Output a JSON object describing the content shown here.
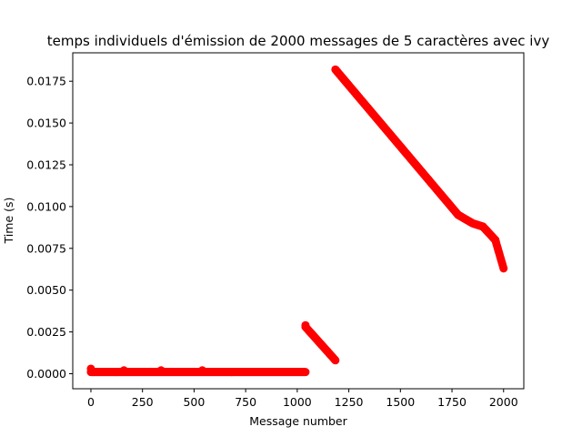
{
  "chart_data": {
    "type": "scatter",
    "title": "temps individuels d'émission de 2000 messages de 5 caractères avec ivy",
    "xlabel": "Message number",
    "ylabel": "Time (s)",
    "xlim": [
      -88,
      2098
    ],
    "ylim": [
      -0.0009,
      0.0192
    ],
    "xticks": [
      0,
      250,
      500,
      750,
      1000,
      1250,
      1500,
      1750,
      2000
    ],
    "xtick_labels": [
      "0",
      "250",
      "500",
      "750",
      "1000",
      "1250",
      "1500",
      "1750",
      "2000"
    ],
    "yticks": [
      0.0,
      0.0025,
      0.005,
      0.0075,
      0.01,
      0.0125,
      0.015,
      0.0175
    ],
    "ytick_labels": [
      "0.0000",
      "0.0025",
      "0.0050",
      "0.0075",
      "0.0100",
      "0.0125",
      "0.0150",
      "0.0175"
    ],
    "grid": false,
    "marker_color": "#ff0000",
    "series": [
      {
        "segments": [
          {
            "x_start": 0,
            "x_end": 1040,
            "y_start": 0.0001,
            "y_end": 0.0001
          },
          {
            "x_start": 1040,
            "x_end": 1185,
            "y_start": 0.0028,
            "y_end": 0.0008
          },
          {
            "x_start": 1185,
            "x_end": 1780,
            "y_start": 0.0182,
            "y_end": 0.0095
          },
          {
            "x_start": 1780,
            "x_end": 1850,
            "y_start": 0.0095,
            "y_end": 0.009
          },
          {
            "x_start": 1850,
            "x_end": 1900,
            "y_start": 0.009,
            "y_end": 0.0088
          },
          {
            "x_start": 1900,
            "x_end": 1960,
            "y_start": 0.0088,
            "y_end": 0.008
          },
          {
            "x_start": 1960,
            "x_end": 2000,
            "y_start": 0.008,
            "y_end": 0.0063
          }
        ],
        "outliers": [
          {
            "x": 0,
            "y": 0.0003
          },
          {
            "x": 160,
            "y": 0.0002
          },
          {
            "x": 340,
            "y": 0.0002
          },
          {
            "x": 540,
            "y": 0.0002
          },
          {
            "x": 1040,
            "y": 0.0029
          }
        ]
      }
    ]
  }
}
